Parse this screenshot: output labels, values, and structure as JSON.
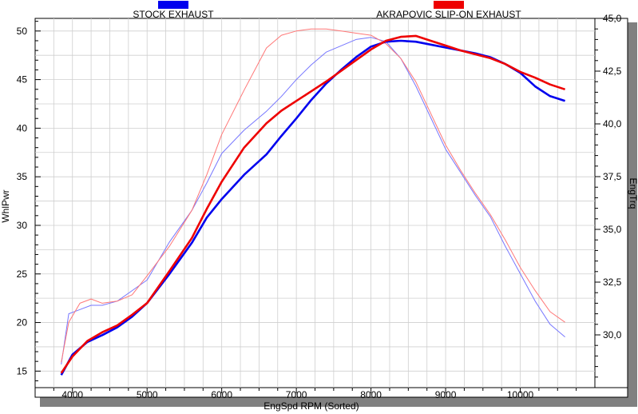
{
  "chart_data": {
    "type": "line",
    "xlabel": "EngSpd  RPM    (Sorted)",
    "ylabel": "WhlPwr",
    "y2label": "EngTrq",
    "xlim": [
      3500,
      11000
    ],
    "ylim": [
      13.3,
      51.3
    ],
    "y2lim": [
      27.5,
      45.0
    ],
    "xticks": [
      "4000",
      "5000",
      "6000",
      "7000",
      "8000",
      "9000",
      "10000"
    ],
    "yticks": [
      "15",
      "20",
      "25",
      "30",
      "35",
      "40",
      "45",
      "50"
    ],
    "y2ticks": [
      "30,0",
      "32,5",
      "35,0",
      "37,5",
      "40,0",
      "42,5",
      "45,0"
    ],
    "grid": true,
    "legend_position": "top",
    "series": [
      {
        "name": "STOCK EXHAUST",
        "color": "#0000ee",
        "axis": "left",
        "kind": "power",
        "x": [
          3850,
          4000,
          4200,
          4400,
          4600,
          4800,
          5000,
          5300,
          5600,
          5800,
          6000,
          6300,
          6600,
          6800,
          7000,
          7200,
          7400,
          7600,
          7800,
          8000,
          8200,
          8400,
          8600,
          8800,
          9000,
          9200,
          9400,
          9600,
          9800,
          10000,
          10200,
          10400,
          10600
        ],
        "y": [
          14.6,
          16.7,
          18.0,
          18.7,
          19.5,
          20.6,
          22.0,
          25.0,
          28.2,
          30.8,
          32.7,
          35.2,
          37.3,
          39.2,
          41.0,
          42.9,
          44.6,
          46.0,
          47.3,
          48.4,
          48.9,
          49.0,
          48.9,
          48.6,
          48.3,
          48.0,
          47.7,
          47.3,
          46.6,
          45.7,
          44.3,
          43.3,
          42.8
        ]
      },
      {
        "name": "AKRAPOVIC SLIP-ON EXHAUST",
        "color": "#ee0000",
        "axis": "left",
        "kind": "power",
        "x": [
          3850,
          4000,
          4200,
          4400,
          4600,
          4800,
          5000,
          5300,
          5600,
          5800,
          6000,
          6300,
          6600,
          6800,
          7000,
          7200,
          7400,
          7600,
          7800,
          8000,
          8200,
          8400,
          8600,
          8800,
          9000,
          9200,
          9400,
          9600,
          9800,
          10000,
          10200,
          10400,
          10600
        ],
        "y": [
          14.8,
          16.5,
          18.1,
          19.0,
          19.7,
          20.8,
          22.0,
          25.3,
          28.7,
          31.7,
          34.5,
          38.0,
          40.5,
          41.8,
          42.8,
          43.8,
          44.8,
          45.9,
          47.0,
          48.1,
          49.0,
          49.4,
          49.5,
          49.0,
          48.5,
          48.0,
          47.6,
          47.2,
          46.6,
          45.8,
          45.2,
          44.5,
          44.0
        ]
      },
      {
        "name": "STOCK EXHAUST",
        "color": "#7777ff",
        "axis": "right",
        "kind": "torque",
        "x": [
          3850,
          3950,
          4100,
          4250,
          4400,
          4600,
          4800,
          5000,
          5300,
          5600,
          5800,
          6000,
          6300,
          6600,
          6800,
          7000,
          7200,
          7400,
          7600,
          7800,
          8000,
          8200,
          8400,
          8600,
          8800,
          9000,
          9200,
          9400,
          9600,
          9800,
          10000,
          10200,
          10400,
          10600
        ],
        "y": [
          28.6,
          31.0,
          31.2,
          31.4,
          31.4,
          31.6,
          32.1,
          32.6,
          34.4,
          35.9,
          37.2,
          38.6,
          39.7,
          40.6,
          41.3,
          42.1,
          42.8,
          43.4,
          43.7,
          44.0,
          44.1,
          43.9,
          43.1,
          41.8,
          40.3,
          38.8,
          37.7,
          36.6,
          35.6,
          34.2,
          32.9,
          31.6,
          30.5,
          29.9
        ]
      },
      {
        "name": "AKRAPOVIC SLIP-ON EXHAUST",
        "color": "#ff7777",
        "axis": "right",
        "kind": "torque",
        "x": [
          3850,
          3950,
          4100,
          4250,
          4400,
          4600,
          4800,
          5000,
          5300,
          5600,
          5800,
          6000,
          6300,
          6600,
          6800,
          7000,
          7200,
          7400,
          7600,
          7800,
          8000,
          8200,
          8400,
          8600,
          8800,
          9000,
          9200,
          9400,
          9600,
          9800,
          10000,
          10200,
          10400,
          10600
        ],
        "y": [
          28.7,
          30.6,
          31.5,
          31.7,
          31.5,
          31.6,
          31.9,
          32.8,
          34.2,
          35.9,
          37.6,
          39.5,
          41.6,
          43.6,
          44.2,
          44.4,
          44.5,
          44.5,
          44.4,
          44.3,
          44.2,
          43.8,
          43.1,
          42.0,
          40.5,
          39.0,
          37.8,
          36.7,
          35.7,
          34.5,
          33.2,
          32.1,
          31.1,
          30.6
        ]
      }
    ]
  }
}
